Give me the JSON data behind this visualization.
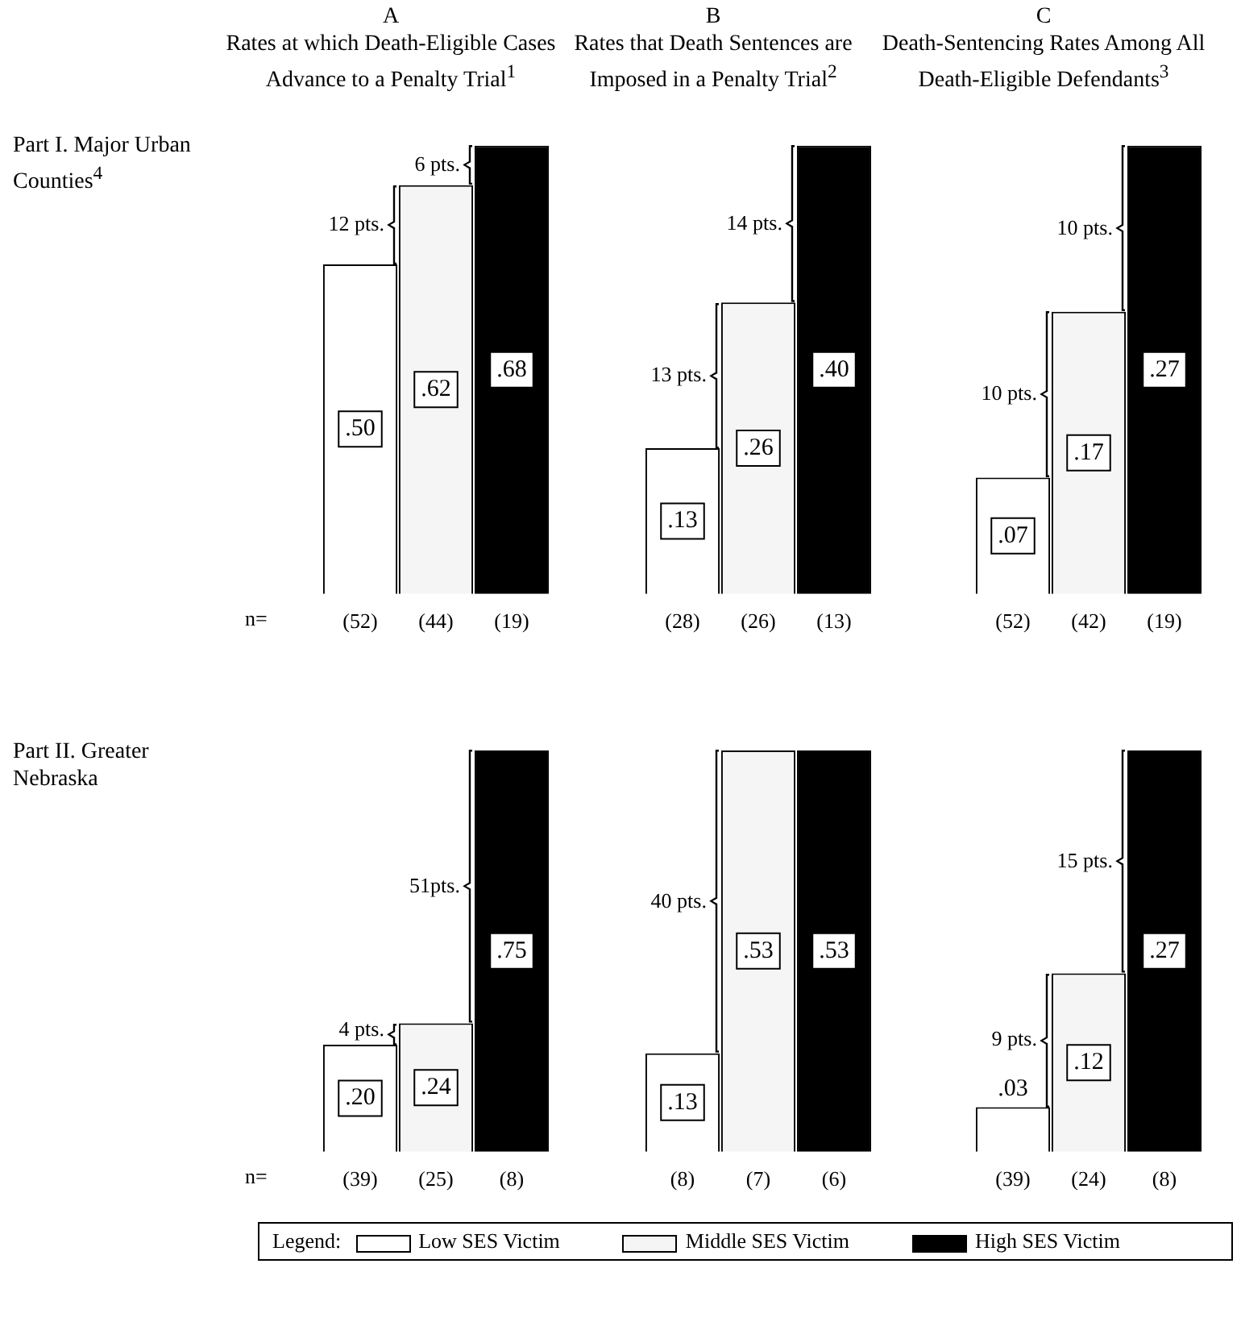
{
  "chart_data": [
    {
      "type": "bar",
      "title": "A",
      "subtitle": "Rates at which Death-Eligible Cases Advance to a Penalty Trial$^{1}$",
      "ylabel": "Part I. Major Urban Counties$^{4}$",
      "xlabel": "n=",
      "categories": [
        "(52)",
        "(44)",
        "(19)"
      ],
      "tick_labels": "x",
      "series": [
        {
          "color": "#ffffff",
          "values": [
            0.5,
            null,
            null
          ],
          "value_labels": [
            ".50",
            null,
            null
          ]
        },
        {
          "color": "#f5f5f5",
          "values": [
            null,
            0.62,
            null
          ],
          "value_labels": [
            null,
            ".62",
            null
          ]
        },
        {
          "color": "#000000",
          "values": [
            null,
            null,
            0.68
          ],
          "value_labels": [
            null,
            null,
            ".68"
          ]
        }
      ],
      "annotations": [
        "12 pts.",
        "6 pts."
      ]
    },
    {
      "type": "bar",
      "title": "B",
      "subtitle": "Rates that Death Sentences are Imposed in a Penalty Trial$^{2}$",
      "categories": [
        "(28)",
        "(26)",
        "(13)"
      ],
      "tick_labels": "x",
      "series": [
        {
          "color": "#ffffff",
          "values": [
            0.13,
            null,
            null
          ],
          "value_labels": [
            ".13",
            null,
            null
          ]
        },
        {
          "color": "#f5f5f5",
          "values": [
            null,
            0.26,
            null
          ],
          "value_labels": [
            null,
            ".26",
            null
          ]
        },
        {
          "color": "#000000",
          "values": [
            null,
            null,
            0.4
          ],
          "value_labels": [
            null,
            null,
            ".40"
          ]
        }
      ],
      "annotations": [
        "13 pts.",
        "14 pts."
      ]
    },
    {
      "type": "bar",
      "title": "C",
      "subtitle": "Death-Sentencing Rates Among All Death-Eligible Defendants$^{3}$",
      "categories": [
        "(52)",
        "(42)",
        "(19)"
      ],
      "tick_labels": "x",
      "series": [
        {
          "color": "#ffffff",
          "values": [
            0.07,
            null,
            null
          ],
          "value_labels": [
            ".07",
            null,
            null
          ]
        },
        {
          "color": "#f5f5f5",
          "values": [
            null,
            0.17,
            null
          ],
          "value_labels": [
            null,
            ".17",
            null
          ]
        },
        {
          "color": "#000000",
          "values": [
            null,
            null,
            0.27
          ],
          "value_labels": [
            null,
            null,
            ".27"
          ]
        }
      ],
      "annotations": [
        "10 pts.",
        "10 pts."
      ]
    },
    {
      "type": "bar",
      "ylabel": "Part II. Greater Nebraska",
      "xlabel": "n=",
      "categories": [
        "(39)",
        "(25)",
        "(8)"
      ],
      "tick_labels": "x",
      "series": [
        {
          "color": "#ffffff",
          "values": [
            0.2,
            null,
            null
          ],
          "value_labels": [
            ".20",
            null,
            null
          ]
        },
        {
          "color": "#f5f5f5",
          "values": [
            null,
            0.24,
            null
          ],
          "value_labels": [
            null,
            ".24",
            null
          ]
        },
        {
          "color": "#000000",
          "values": [
            null,
            null,
            0.75
          ],
          "value_labels": [
            null,
            null,
            ".75"
          ]
        }
      ],
      "annotations": [
        "4 pts.",
        "51pts."
      ]
    },
    {
      "type": "bar",
      "categories": [
        "(8)",
        "(7)",
        "(6)"
      ],
      "tick_labels": "x",
      "series": [
        {
          "color": "#ffffff",
          "values": [
            0.13,
            null,
            null
          ],
          "value_labels": [
            ".13",
            null,
            null
          ]
        },
        {
          "color": "#f5f5f5",
          "values": [
            null,
            0.53,
            null
          ],
          "value_labels": [
            null,
            ".53",
            null
          ]
        },
        {
          "color": "#000000",
          "values": [
            null,
            null,
            0.53
          ],
          "value_labels": [
            null,
            null,
            ".53"
          ]
        }
      ],
      "annotations": [
        "40 pts."
      ]
    },
    {
      "type": "bar",
      "categories": [
        "(39)",
        "(24)",
        "(8)"
      ],
      "tick_labels": "x",
      "legend": "bottom",
      "legend_title": "Legend:",
      "series": [
        {
          "name": "Low SES Victim",
          "color": "#ffffff",
          "values": [
            0.03,
            null,
            null
          ],
          "value_labels": [
            ".03",
            null,
            null
          ]
        },
        {
          "name": "Middle SES Victim",
          "color": "#f5f5f5",
          "values": [
            null,
            0.12,
            null
          ],
          "value_labels": [
            null,
            ".12",
            null
          ]
        },
        {
          "name": "High SES Victim",
          "color": "#000000",
          "values": [
            null,
            null,
            0.27
          ],
          "value_labels": [
            null,
            null,
            ".27"
          ]
        }
      ],
      "annotations": [
        "9 pts.",
        "15 pts."
      ]
    }
  ]
}
